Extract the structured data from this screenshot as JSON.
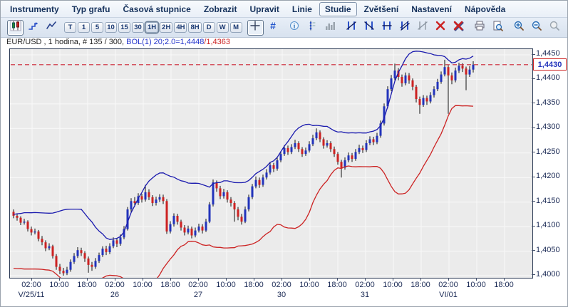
{
  "menu": {
    "items": [
      {
        "label": "Instrumenty"
      },
      {
        "label": "Typ grafu"
      },
      {
        "label": "Časová stupnice"
      },
      {
        "label": "Zobrazit"
      },
      {
        "label": "Upravit"
      },
      {
        "label": "Linie"
      },
      {
        "label": "Studie",
        "active": true
      },
      {
        "label": "Zvětšení"
      },
      {
        "label": "Nastavení"
      },
      {
        "label": "Nápověda"
      }
    ]
  },
  "toolbar": {
    "chart_type_tools": [
      {
        "icon": "candlestick-chart",
        "selected": true
      },
      {
        "icon": "step-chart",
        "selected": false
      },
      {
        "icon": "line-chart",
        "selected": false
      }
    ],
    "timeframes": [
      "T",
      "1",
      "5",
      "10",
      "15",
      "30",
      "1H",
      "2H",
      "4H",
      "8H",
      "D",
      "W",
      "M"
    ],
    "timeframe_selected": "1H",
    "view_tools": [
      {
        "icon": "crosshair",
        "selected": true
      },
      {
        "icon": "grid",
        "selected": false
      }
    ],
    "info_tools": [
      {
        "icon": "info",
        "selected": false
      },
      {
        "icon": "price-scale",
        "selected": false
      },
      {
        "icon": "volume",
        "selected": false
      }
    ],
    "draw_tools": [
      {
        "icon": "trend-line-down",
        "selected": false
      },
      {
        "icon": "trend-line-up",
        "selected": false
      },
      {
        "icon": "trend-hline",
        "selected": false
      },
      {
        "icon": "trend-channel",
        "selected": false
      },
      {
        "icon": "trend-disabled",
        "selected": false
      },
      {
        "icon": "delete-line",
        "selected": false
      },
      {
        "icon": "delete-all-lines",
        "selected": false
      }
    ],
    "print_tools": [
      {
        "icon": "print",
        "selected": false
      },
      {
        "icon": "print-preview",
        "selected": false
      }
    ],
    "zoom_tools": [
      {
        "icon": "zoom-in",
        "selected": false
      },
      {
        "icon": "zoom-out",
        "selected": false
      },
      {
        "icon": "zoom-reset",
        "selected": false
      }
    ],
    "pin_tool": {
      "icon": "pin",
      "selected": false
    }
  },
  "chart_header": {
    "left_text": "EUR/USD , 1 hodina, # 135 / 300, ",
    "indicator_text": "BOL(1) 20;2.0=1,4448",
    "indicator_lower_text": "/1,4363"
  },
  "colors": {
    "up_candle": "#2233bb",
    "down_candle": "#cc2222",
    "wick": "#101010",
    "band_upper": "#1a1aae",
    "band_lower": "#cc2222",
    "current_price_line": "#cc2233",
    "grid": "#f9f9f9",
    "plot_bg": "#ebebeb",
    "axis_text": "#1b2a55"
  },
  "chart_data": {
    "type": "candlestick",
    "instrument": "EUR/USD",
    "interval": "1 hodina",
    "ylim": [
      1.4,
      1.445
    ],
    "y_ticks": [
      {
        "label": "1,4450",
        "value": 1.445
      },
      {
        "label": "1,4400",
        "value": 1.44
      },
      {
        "label": "1,4350",
        "value": 1.435
      },
      {
        "label": "1,4300",
        "value": 1.43
      },
      {
        "label": "1,4250",
        "value": 1.425
      },
      {
        "label": "1,4200",
        "value": 1.42
      },
      {
        "label": "1,4150",
        "value": 1.415
      },
      {
        "label": "1,4100",
        "value": 1.41
      },
      {
        "label": "1,4050",
        "value": 1.405
      },
      {
        "label": "1,4000",
        "value": 1.4
      }
    ],
    "x_labels": [
      {
        "time": "02:00",
        "date": "V/25/11"
      },
      {
        "time": "10:00"
      },
      {
        "time": "18:00"
      },
      {
        "time": "02:00",
        "date": "26"
      },
      {
        "time": "10:00"
      },
      {
        "time": "18:00"
      },
      {
        "time": "02:00",
        "date": "27"
      },
      {
        "time": "10:00"
      },
      {
        "time": "18:00"
      },
      {
        "time": "02:00",
        "date": "30"
      },
      {
        "time": "10:00"
      },
      {
        "time": "18:00"
      },
      {
        "time": "02:00",
        "date": "31"
      },
      {
        "time": "10:00"
      },
      {
        "time": "18:00"
      },
      {
        "time": "02:00",
        "date": "VI/01"
      },
      {
        "time": "10:00"
      },
      {
        "time": "18:00"
      }
    ],
    "current_price": 1.443,
    "current_price_label": "1,4430",
    "bollinger": {
      "period": 20,
      "mult": 2.0,
      "upper_last": 1.4448,
      "lower_last": 1.4363,
      "pre_closes": [
        1.4118,
        1.4112,
        1.4105,
        1.41,
        1.4095,
        1.409,
        1.4085,
        1.408,
        1.4075,
        1.407,
        1.4068,
        1.4062,
        1.4058,
        1.4052,
        1.4048,
        1.4042,
        1.4038,
        1.4035,
        1.4032,
        1.403
      ]
    },
    "ohlc": [
      [
        1.413,
        1.4135,
        1.4117,
        1.4122
      ],
      [
        1.4122,
        1.4127,
        1.4112,
        1.4118
      ],
      [
        1.4118,
        1.4121,
        1.4103,
        1.4108
      ],
      [
        1.4108,
        1.4116,
        1.4104,
        1.411
      ],
      [
        1.411,
        1.4113,
        1.409,
        1.4095
      ],
      [
        1.4095,
        1.41,
        1.4082,
        1.4088
      ],
      [
        1.4088,
        1.4096,
        1.4084,
        1.409
      ],
      [
        1.409,
        1.4093,
        1.407,
        1.4075
      ],
      [
        1.4075,
        1.4081,
        1.4062,
        1.4068
      ],
      [
        1.4068,
        1.4072,
        1.405,
        1.4056
      ],
      [
        1.4056,
        1.4066,
        1.4052,
        1.406
      ],
      [
        1.406,
        1.4063,
        1.4035,
        1.404
      ],
      [
        1.404,
        1.4044,
        1.4012,
        1.4018
      ],
      [
        1.4018,
        1.4024,
        1.4003,
        1.401
      ],
      [
        1.401,
        1.4016,
        1.4,
        1.4005
      ],
      [
        1.4005,
        1.4018,
        1.4001,
        1.4012
      ],
      [
        1.4012,
        1.4033,
        1.4008,
        1.4028
      ],
      [
        1.4028,
        1.4046,
        1.4024,
        1.404
      ],
      [
        1.404,
        1.4058,
        1.4036,
        1.4052
      ],
      [
        1.4052,
        1.4057,
        1.404,
        1.4046
      ],
      [
        1.4046,
        1.405,
        1.4028,
        1.4035
      ],
      [
        1.4035,
        1.4039,
        1.4006,
        1.4022
      ],
      [
        1.4022,
        1.4028,
        1.401,
        1.4018
      ],
      [
        1.4018,
        1.4036,
        1.4014,
        1.403
      ],
      [
        1.403,
        1.4047,
        1.4026,
        1.4042
      ],
      [
        1.4042,
        1.406,
        1.4038,
        1.4055
      ],
      [
        1.4055,
        1.4061,
        1.4042,
        1.4048
      ],
      [
        1.4048,
        1.4066,
        1.4044,
        1.406
      ],
      [
        1.406,
        1.4078,
        1.4056,
        1.4072
      ],
      [
        1.4072,
        1.4077,
        1.4058,
        1.4065
      ],
      [
        1.4065,
        1.4084,
        1.4061,
        1.4078
      ],
      [
        1.4078,
        1.4101,
        1.4074,
        1.4095
      ],
      [
        1.4095,
        1.414,
        1.4092,
        1.4135
      ],
      [
        1.4135,
        1.4158,
        1.413,
        1.4152
      ],
      [
        1.4152,
        1.416,
        1.4141,
        1.4148
      ],
      [
        1.4148,
        1.4168,
        1.4144,
        1.4162
      ],
      [
        1.4162,
        1.4167,
        1.4149,
        1.4155
      ],
      [
        1.4155,
        1.4185,
        1.4151,
        1.417
      ],
      [
        1.417,
        1.4176,
        1.4154,
        1.416
      ],
      [
        1.416,
        1.4164,
        1.4142,
        1.4148
      ],
      [
        1.4148,
        1.4161,
        1.4143,
        1.4155
      ],
      [
        1.4155,
        1.4166,
        1.415,
        1.416
      ],
      [
        1.416,
        1.4165,
        1.4146,
        1.4152
      ],
      [
        1.4152,
        1.4156,
        1.4085,
        1.409
      ],
      [
        1.409,
        1.4111,
        1.4086,
        1.4105
      ],
      [
        1.4105,
        1.4127,
        1.41,
        1.4122
      ],
      [
        1.4122,
        1.4126,
        1.4104,
        1.411
      ],
      [
        1.411,
        1.4114,
        1.4092,
        1.4098
      ],
      [
        1.4098,
        1.4103,
        1.4082,
        1.4088
      ],
      [
        1.4088,
        1.4102,
        1.4084,
        1.4096
      ],
      [
        1.4096,
        1.41,
        1.4076,
        1.4082
      ],
      [
        1.4082,
        1.4098,
        1.4078,
        1.4092
      ],
      [
        1.4092,
        1.4106,
        1.4088,
        1.41
      ],
      [
        1.41,
        1.4105,
        1.4086,
        1.4092
      ],
      [
        1.4092,
        1.4116,
        1.4089,
        1.411
      ],
      [
        1.411,
        1.415,
        1.4107,
        1.4145
      ],
      [
        1.4145,
        1.4196,
        1.4141,
        1.419
      ],
      [
        1.419,
        1.4194,
        1.4171,
        1.4178
      ],
      [
        1.4178,
        1.4183,
        1.4156,
        1.4162
      ],
      [
        1.4162,
        1.4177,
        1.4157,
        1.417
      ],
      [
        1.417,
        1.4174,
        1.4149,
        1.4155
      ],
      [
        1.4155,
        1.416,
        1.4141,
        1.4148
      ],
      [
        1.4148,
        1.4152,
        1.411,
        1.4135
      ],
      [
        1.4135,
        1.414,
        1.4113,
        1.412
      ],
      [
        1.412,
        1.4126,
        1.4104,
        1.411
      ],
      [
        1.411,
        1.4141,
        1.4107,
        1.4135
      ],
      [
        1.4135,
        1.4165,
        1.4131,
        1.416
      ],
      [
        1.416,
        1.4187,
        1.4156,
        1.4182
      ],
      [
        1.4182,
        1.4202,
        1.4178,
        1.4195
      ],
      [
        1.4195,
        1.42,
        1.4179,
        1.4185
      ],
      [
        1.4185,
        1.4206,
        1.4181,
        1.42
      ],
      [
        1.42,
        1.4217,
        1.4196,
        1.421
      ],
      [
        1.421,
        1.4231,
        1.4206,
        1.4225
      ],
      [
        1.4225,
        1.423,
        1.4211,
        1.4218
      ],
      [
        1.4218,
        1.4241,
        1.4214,
        1.4235
      ],
      [
        1.4235,
        1.4254,
        1.4231,
        1.4248
      ],
      [
        1.4248,
        1.4266,
        1.4244,
        1.426
      ],
      [
        1.426,
        1.4265,
        1.4246,
        1.4252
      ],
      [
        1.4252,
        1.4268,
        1.4248,
        1.4262
      ],
      [
        1.4262,
        1.4277,
        1.4258,
        1.427
      ],
      [
        1.427,
        1.4274,
        1.4252,
        1.4258
      ],
      [
        1.4258,
        1.4262,
        1.4242,
        1.4248
      ],
      [
        1.4248,
        1.4261,
        1.4244,
        1.4255
      ],
      [
        1.4255,
        1.4274,
        1.4251,
        1.4268
      ],
      [
        1.4268,
        1.4287,
        1.4264,
        1.428
      ],
      [
        1.428,
        1.43,
        1.4276,
        1.4292
      ],
      [
        1.4292,
        1.4296,
        1.4272,
        1.4278
      ],
      [
        1.4278,
        1.4282,
        1.4259,
        1.4265
      ],
      [
        1.4265,
        1.4276,
        1.4261,
        1.427
      ],
      [
        1.427,
        1.4274,
        1.4252,
        1.4258
      ],
      [
        1.4258,
        1.4263,
        1.4242,
        1.4248
      ],
      [
        1.4248,
        1.4252,
        1.4226,
        1.4232
      ],
      [
        1.4232,
        1.4236,
        1.42,
        1.422
      ],
      [
        1.422,
        1.4241,
        1.4216,
        1.4235
      ],
      [
        1.4235,
        1.4251,
        1.4231,
        1.4245
      ],
      [
        1.4245,
        1.425,
        1.4232,
        1.4238
      ],
      [
        1.4238,
        1.4258,
        1.4234,
        1.4252
      ],
      [
        1.4252,
        1.4267,
        1.4248,
        1.426
      ],
      [
        1.426,
        1.4265,
        1.425,
        1.4256
      ],
      [
        1.4256,
        1.4276,
        1.4252,
        1.427
      ],
      [
        1.427,
        1.4284,
        1.4266,
        1.4278
      ],
      [
        1.4278,
        1.4283,
        1.4266,
        1.4272
      ],
      [
        1.4272,
        1.4291,
        1.4268,
        1.4285
      ],
      [
        1.4285,
        1.4316,
        1.4281,
        1.431
      ],
      [
        1.431,
        1.4351,
        1.4306,
        1.4345
      ],
      [
        1.4345,
        1.4386,
        1.4341,
        1.438
      ],
      [
        1.438,
        1.4409,
        1.4376,
        1.4402
      ],
      [
        1.4402,
        1.4432,
        1.4398,
        1.4418
      ],
      [
        1.4418,
        1.4423,
        1.4398,
        1.4405
      ],
      [
        1.4405,
        1.441,
        1.4385,
        1.4392
      ],
      [
        1.4392,
        1.4414,
        1.4388,
        1.4408
      ],
      [
        1.4408,
        1.4413,
        1.4391,
        1.4398
      ],
      [
        1.4398,
        1.4402,
        1.4378,
        1.4385
      ],
      [
        1.4385,
        1.4389,
        1.4353,
        1.436
      ],
      [
        1.436,
        1.4365,
        1.433,
        1.4348
      ],
      [
        1.4348,
        1.4368,
        1.4344,
        1.4362
      ],
      [
        1.4362,
        1.4367,
        1.4348,
        1.4355
      ],
      [
        1.4355,
        1.4374,
        1.4351,
        1.4368
      ],
      [
        1.4368,
        1.4386,
        1.4363,
        1.438
      ],
      [
        1.438,
        1.4401,
        1.4376,
        1.4395
      ],
      [
        1.4395,
        1.4416,
        1.4391,
        1.441
      ],
      [
        1.441,
        1.444,
        1.4406,
        1.4425
      ],
      [
        1.4425,
        1.4429,
        1.433,
        1.4408
      ],
      [
        1.4408,
        1.4414,
        1.439,
        1.4398
      ],
      [
        1.4398,
        1.4424,
        1.4394,
        1.4418
      ],
      [
        1.4418,
        1.4434,
        1.4413,
        1.4428
      ],
      [
        1.4428,
        1.4433,
        1.4415,
        1.4422
      ],
      [
        1.4422,
        1.4426,
        1.4378,
        1.441
      ],
      [
        1.441,
        1.4427,
        1.4405,
        1.442
      ],
      [
        1.442,
        1.4437,
        1.4414,
        1.443
      ]
    ]
  }
}
